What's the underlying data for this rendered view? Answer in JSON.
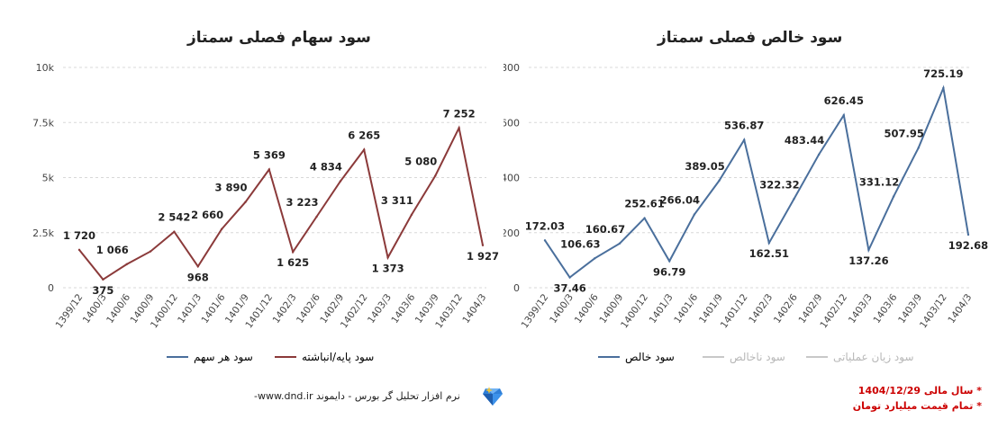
{
  "left": {
    "title": "سود سهام فصلی سمتاز",
    "legend": [
      {
        "label": "سود هر سهم",
        "color": "#4a6f9c"
      },
      {
        "label": "سود پایه/انباشته",
        "color": "#8b3a3a"
      }
    ]
  },
  "right": {
    "title": "سود خالص فصلی سمتاز",
    "legend": [
      {
        "label": "سود خالص",
        "color": "#4a6f9c"
      },
      {
        "label": "سود ناخالص",
        "color": "#c8c8c8"
      },
      {
        "label": "سود زیان عملیاتی",
        "color": "#c8c8c8"
      }
    ]
  },
  "footer": {
    "text": "نرم افزار تحلیل گر بورس - دایموند www.dnd.ir-"
  },
  "notes": [
    "* سال مالی 1404/12/29",
    "* تمام قیمت میلیارد تومان"
  ],
  "icons": {
    "logo": "diamond-icon"
  },
  "chart_data": [
    {
      "type": "line",
      "title": "سود سهام فصلی سمتاز",
      "categories": [
        "1399/12",
        "1400/3",
        "1400/6",
        "1400/9",
        "1400/12",
        "1401/3",
        "1401/6",
        "1401/9",
        "1401/12",
        "1402/3",
        "1402/6",
        "1402/9",
        "1402/12",
        "1403/3",
        "1403/6",
        "1403/9",
        "1403/12",
        "1404/3"
      ],
      "series": [
        {
          "name": "سود پایه/انباشته",
          "color": "#8b3a3a",
          "values": [
            1720,
            375,
            1066,
            1650,
            2542,
            968,
            2660,
            3890,
            5369,
            1625,
            3223,
            4834,
            6265,
            1373,
            3311,
            5080,
            7252,
            1927
          ]
        }
      ],
      "data_labels": [
        "1 720",
        "375",
        "1 066",
        "",
        "2 542",
        "968",
        "2 660",
        "3 890",
        "5 369",
        "1 625",
        "3 223",
        "4 834",
        "6 265",
        "1 373",
        "3 311",
        "5 080",
        "7 252",
        "1 927"
      ],
      "yticks": [
        "0",
        "2.5k",
        "5k",
        "7.5k",
        "10k"
      ],
      "ylim": [
        0,
        10000
      ],
      "grid": "dashed-horizontal",
      "legend_position": "bottom"
    },
    {
      "type": "line",
      "title": "سود خالص فصلی سمتاز",
      "categories": [
        "1399/12",
        "1400/3",
        "1400/6",
        "1400/9",
        "1400/12",
        "1401/3",
        "1401/6",
        "1401/9",
        "1401/12",
        "1402/3",
        "1402/6",
        "1402/9",
        "1402/12",
        "1403/3",
        "1403/6",
        "1403/9",
        "1403/12",
        "1404/3"
      ],
      "series": [
        {
          "name": "سود خالص",
          "color": "#4a6f9c",
          "values": [
            172.03,
            37.46,
            106.63,
            160.67,
            252.61,
            96.79,
            266.04,
            389.05,
            536.87,
            162.51,
            322.32,
            483.44,
            626.45,
            137.26,
            331.12,
            507.95,
            725.19,
            192.68
          ]
        }
      ],
      "data_labels": [
        "172.03",
        "37.46",
        "106.63",
        "160.67",
        "252.61",
        "96.79",
        "266.04",
        "389.05",
        "536.87",
        "162.51",
        "322.32",
        "483.44",
        "626.45",
        "137.26",
        "331.12",
        "507.95",
        "725.19",
        "192.68"
      ],
      "yticks": [
        "0",
        "200",
        "400",
        "600",
        "800"
      ],
      "ylim": [
        0,
        800
      ],
      "grid": "dashed-horizontal",
      "legend_position": "bottom"
    }
  ]
}
